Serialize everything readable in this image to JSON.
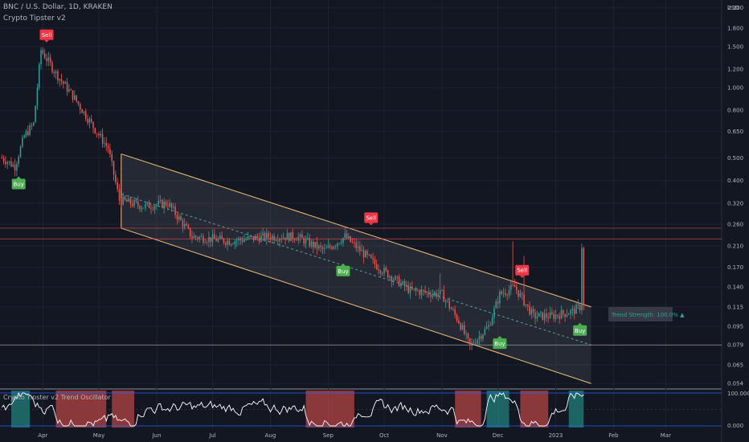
{
  "header": {
    "symbol": "BNC / U.S. Dollar, 1D, KRAKEN",
    "indicator": "Crypto Tipster v2",
    "oscillator": "Crypto Tipster v2 Trend Oscillator"
  },
  "chart_data": {
    "type": "candlestick",
    "currency": "USD",
    "y_scale": "log",
    "ylim": [
      0.052,
      2.3
    ],
    "price_ticks": [
      "2.200",
      "1.800",
      "1.500",
      "1.200",
      "1.000",
      "0.800",
      "0.650",
      "0.500",
      "0.400",
      "0.320",
      "0.260",
      "0.210",
      "0.170",
      "0.140",
      "0.115",
      "0.095",
      "0.079",
      "0.065",
      "0.054"
    ],
    "x_ticks": [
      "Apr",
      "May",
      "Jun",
      "Jul",
      "Aug",
      "Sep",
      "Oct",
      "Nov",
      "Dec",
      "2023",
      "Feb",
      "Mar"
    ],
    "price_path": [
      {
        "date": "2022-03-10",
        "price": 0.5
      },
      {
        "date": "2022-03-17",
        "price": 0.46
      },
      {
        "date": "2022-03-22",
        "price": 0.62
      },
      {
        "date": "2022-03-27",
        "price": 0.7
      },
      {
        "date": "2022-03-31",
        "price": 1.45
      },
      {
        "date": "2022-04-08",
        "price": 1.15
      },
      {
        "date": "2022-04-18",
        "price": 0.9
      },
      {
        "date": "2022-04-28",
        "price": 0.68
      },
      {
        "date": "2022-05-06",
        "price": 0.55
      },
      {
        "date": "2022-05-12",
        "price": 0.33
      },
      {
        "date": "2022-05-25",
        "price": 0.31
      },
      {
        "date": "2022-06-07",
        "price": 0.32
      },
      {
        "date": "2022-06-20",
        "price": 0.23
      },
      {
        "date": "2022-07-10",
        "price": 0.22
      },
      {
        "date": "2022-07-30",
        "price": 0.23
      },
      {
        "date": "2022-08-15",
        "price": 0.23
      },
      {
        "date": "2022-08-30",
        "price": 0.2
      },
      {
        "date": "2022-09-10",
        "price": 0.23
      },
      {
        "date": "2022-09-28",
        "price": 0.17
      },
      {
        "date": "2022-10-15",
        "price": 0.135
      },
      {
        "date": "2022-11-01",
        "price": 0.13
      },
      {
        "date": "2022-11-10",
        "price": 0.1
      },
      {
        "date": "2022-11-16",
        "price": 0.078
      },
      {
        "date": "2022-11-26",
        "price": 0.095
      },
      {
        "date": "2022-12-02",
        "price": 0.13
      },
      {
        "date": "2022-12-10",
        "price": 0.14
      },
      {
        "date": "2022-12-20",
        "price": 0.105
      },
      {
        "date": "2022-12-30",
        "price": 0.105
      },
      {
        "date": "2023-01-10",
        "price": 0.11
      },
      {
        "date": "2023-01-14",
        "price": 0.115
      },
      {
        "date": "2023-01-15",
        "price": 0.21
      },
      {
        "date": "2023-01-16",
        "price": 0.115
      }
    ],
    "channel": {
      "start": {
        "date": "2022-05-13",
        "upper": 0.52,
        "mid": 0.35,
        "lower": 0.25
      },
      "end": {
        "date": "2023-01-20",
        "upper": 0.115,
        "mid": 0.079,
        "lower": 0.054
      }
    },
    "horizontal_levels": [
      {
        "price": 0.25,
        "color": "#ef5350"
      },
      {
        "price": 0.225,
        "color": "#ef5350"
      },
      {
        "price": 0.079,
        "color": "#b2b5be"
      }
    ],
    "signals": [
      {
        "label": "Buy",
        "date": "2022-03-19",
        "price": 0.42,
        "color": "#4caf50"
      },
      {
        "label": "Sell",
        "date": "2022-04-03",
        "price": 1.55,
        "color": "#f23645"
      },
      {
        "label": "Buy",
        "date": "2022-09-09",
        "price": 0.178,
        "color": "#4caf50"
      },
      {
        "label": "Sell",
        "date": "2022-09-24",
        "price": 0.255,
        "color": "#f23645"
      },
      {
        "label": "Buy",
        "date": "2022-12-02",
        "price": 0.087,
        "color": "#4caf50"
      },
      {
        "label": "Sell",
        "date": "2022-12-14",
        "price": 0.152,
        "color": "#f23645"
      },
      {
        "label": "Buy",
        "date": "2023-01-14",
        "price": 0.099,
        "color": "#4caf50"
      }
    ],
    "trend_strength_label": "Trend Strength: 100.0% ▲",
    "oscillator": {
      "ticks": [
        "100.000",
        "0.000"
      ],
      "zones": [
        {
          "from": "2022-03-15",
          "to": "2022-03-25",
          "color": "#26a69a"
        },
        {
          "from": "2022-04-08",
          "to": "2022-05-05",
          "color": "#ef5350"
        },
        {
          "from": "2022-05-08",
          "to": "2022-05-20",
          "color": "#ef5350"
        },
        {
          "from": "2022-08-20",
          "to": "2022-09-15",
          "color": "#ef5350"
        },
        {
          "from": "2022-11-08",
          "to": "2022-11-22",
          "color": "#ef5350"
        },
        {
          "from": "2022-11-25",
          "to": "2022-12-07",
          "color": "#26a69a"
        },
        {
          "from": "2022-12-13",
          "to": "2022-12-28",
          "color": "#ef5350"
        },
        {
          "from": "2023-01-08",
          "to": "2023-01-16",
          "color": "#26a69a"
        }
      ]
    },
    "colors": {
      "up": "#26a69a",
      "down": "#ef5350",
      "background": "#131722",
      "channel": "#f5c07a"
    }
  }
}
